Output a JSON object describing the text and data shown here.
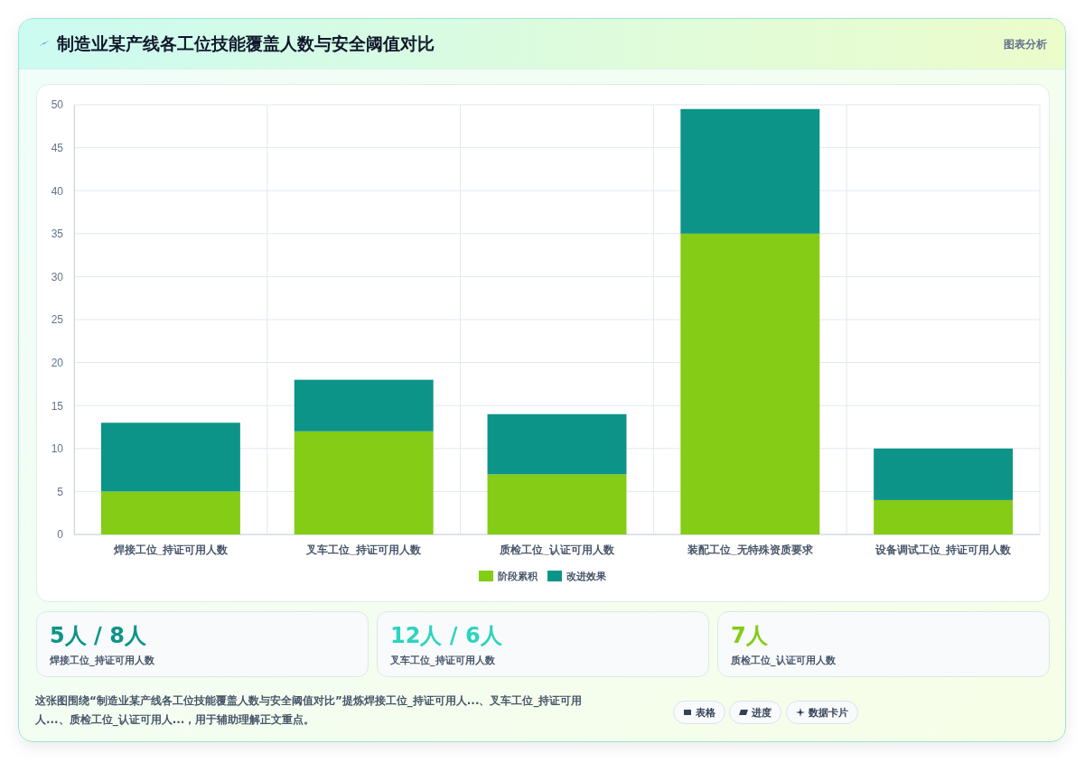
{
  "chart_data": {
    "type": "bar",
    "title": "制造业某产线各工位技能覆盖人数与安全阈值对比",
    "categories": [
      "焊接工位_持证可用人数",
      "叉车工位_持证可用人数",
      "质检工位_认证可用人数",
      "装配工位_无特殊资质要求",
      "设备调试工位_持证可用人数"
    ],
    "series": [
      {
        "name": "阶段累积",
        "color": "#84cc16",
        "values": [
          5,
          12,
          7,
          35,
          4
        ]
      },
      {
        "name": "改进效果",
        "color": "#0d9488",
        "values": [
          8,
          6,
          7,
          14.5,
          6
        ]
      }
    ],
    "stacked": true,
    "ylim": [
      0,
      50
    ],
    "yticks": [
      0,
      5,
      10,
      15,
      20,
      25,
      30,
      35,
      40,
      45,
      50
    ],
    "grid": true,
    "legend": "bottom",
    "annotations": [
      "图表分析",
      "5人 / 8人",
      "焊接工位_持证可用人数",
      "12人 / 6人",
      "叉车工位_持证可用人数",
      "7人",
      "质检工位_认证可用人数",
      "这张图围绕“制造业某产线各工位技能覆盖人数与安全阈值对比”提炼焊接工位_持证可用人...、叉车工位_持证可用人...、质检工位_认证可用人...，用于辅助理解正文重点。",
      "表格",
      "进度",
      "数据卡片"
    ]
  }
}
